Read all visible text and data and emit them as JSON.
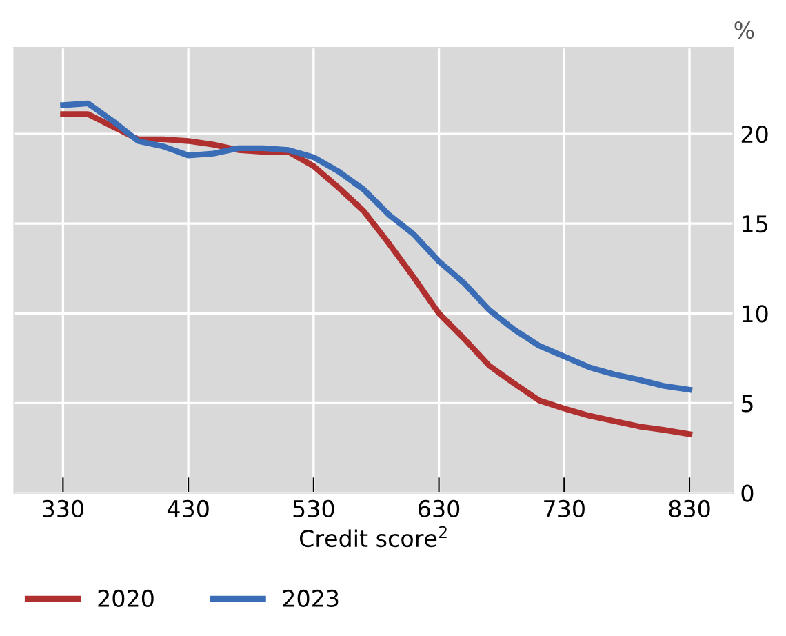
{
  "chart_data": {
    "type": "line",
    "xlabel": "Credit score$^{2}$",
    "ylabel": "%",
    "x": [
      330,
      350,
      370,
      390,
      410,
      430,
      450,
      470,
      490,
      510,
      530,
      550,
      570,
      590,
      610,
      630,
      650,
      670,
      690,
      710,
      730,
      750,
      770,
      790,
      810,
      830
    ],
    "series": [
      {
        "name": "2020",
        "color": "#b03030",
        "values": [
          21.1,
          21.1,
          20.4,
          19.7,
          19.7,
          19.6,
          19.4,
          19.1,
          19.0,
          19.0,
          18.2,
          17.0,
          15.7,
          13.9,
          12.0,
          10.0,
          8.6,
          7.1,
          6.1,
          5.15,
          4.7,
          4.3,
          4.0,
          3.7,
          3.5,
          3.27
        ]
      },
      {
        "name": "2023",
        "color": "#3a6db5",
        "values": [
          21.6,
          21.7,
          20.7,
          19.6,
          19.3,
          18.8,
          18.9,
          19.2,
          19.2,
          19.1,
          18.7,
          17.9,
          16.9,
          15.5,
          14.4,
          12.9,
          11.7,
          10.2,
          9.1,
          8.2,
          7.6,
          7.0,
          6.6,
          6.3,
          5.95,
          5.75
        ]
      }
    ],
    "xlim": [
      291,
      865
    ],
    "ylim": [
      0,
      24.8
    ],
    "xticks": [
      330,
      430,
      530,
      630,
      730,
      830
    ],
    "yticks": [
      0,
      5,
      10,
      15,
      20
    ],
    "grid": true,
    "legend": "bottom left",
    "line_style": "solid",
    "marker": "none"
  }
}
